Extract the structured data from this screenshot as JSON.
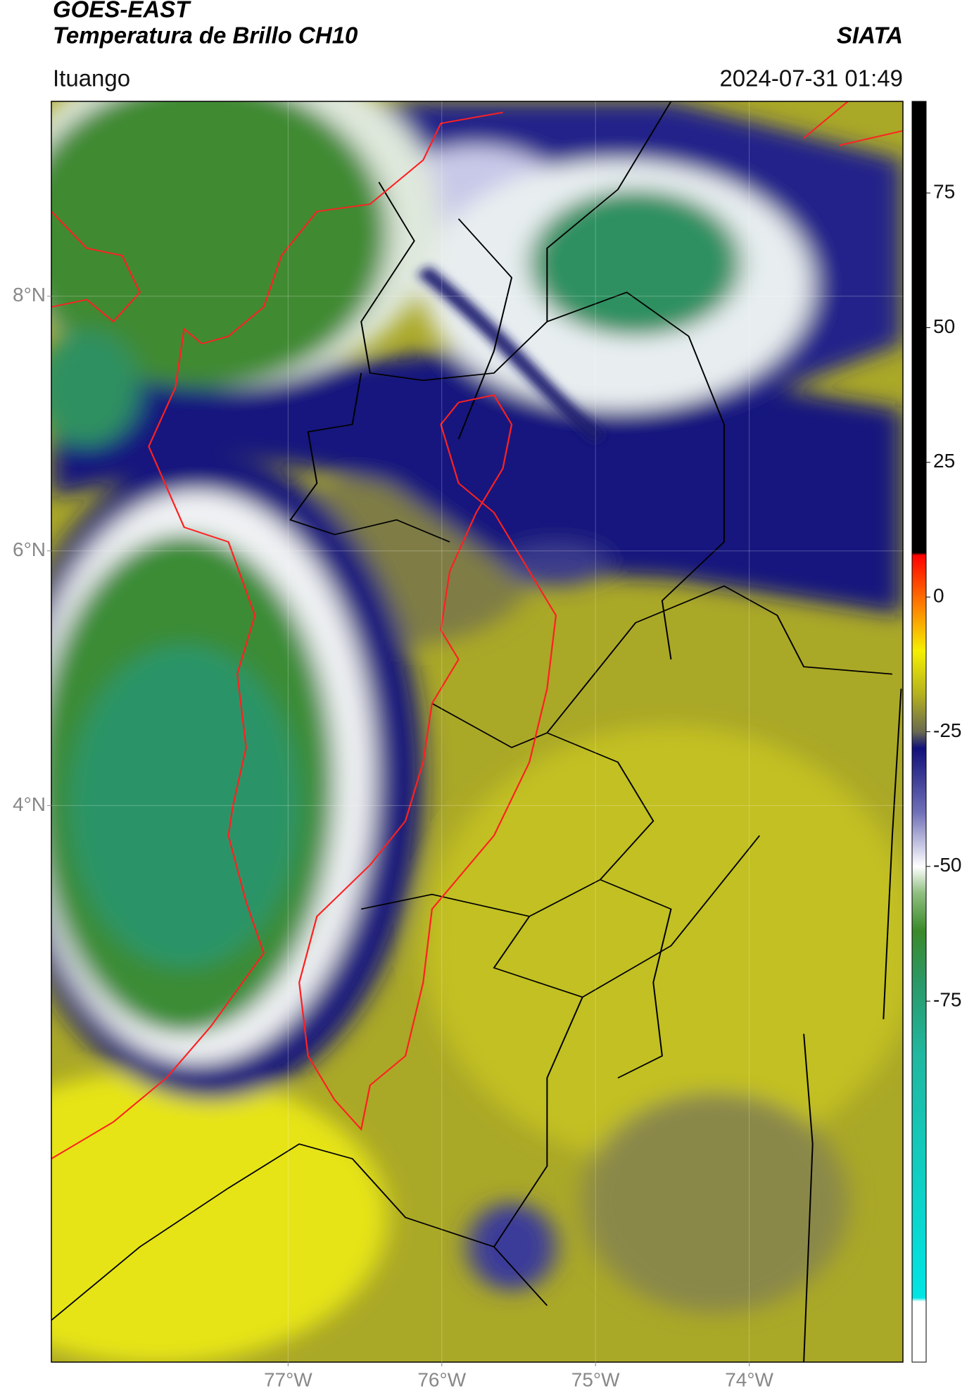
{
  "header": {
    "title": "GOES-EAST",
    "subtitle": "Temperatura de Brillo CH10",
    "source": "SIATA",
    "location": "Ituango",
    "datetime": "2024-07-31 01:49"
  },
  "map": {
    "xlim": [
      -78.54,
      -73.0
    ],
    "ylim": [
      -0.37,
      9.53
    ],
    "xticks": [
      {
        "value": -77,
        "label": "77°W"
      },
      {
        "value": -76,
        "label": "76°W"
      },
      {
        "value": -75,
        "label": "75°W"
      },
      {
        "value": -74,
        "label": "74°W"
      }
    ],
    "yticks": [
      {
        "value": 8,
        "label": "8°N"
      },
      {
        "value": 6,
        "label": "6°N"
      },
      {
        "value": 4,
        "label": "4°N"
      }
    ],
    "grid": true
  },
  "colorbar": {
    "lim": [
      -142,
      92
    ],
    "ticks": [
      75,
      50,
      25,
      0,
      -25,
      -50,
      -75
    ]
  }
}
